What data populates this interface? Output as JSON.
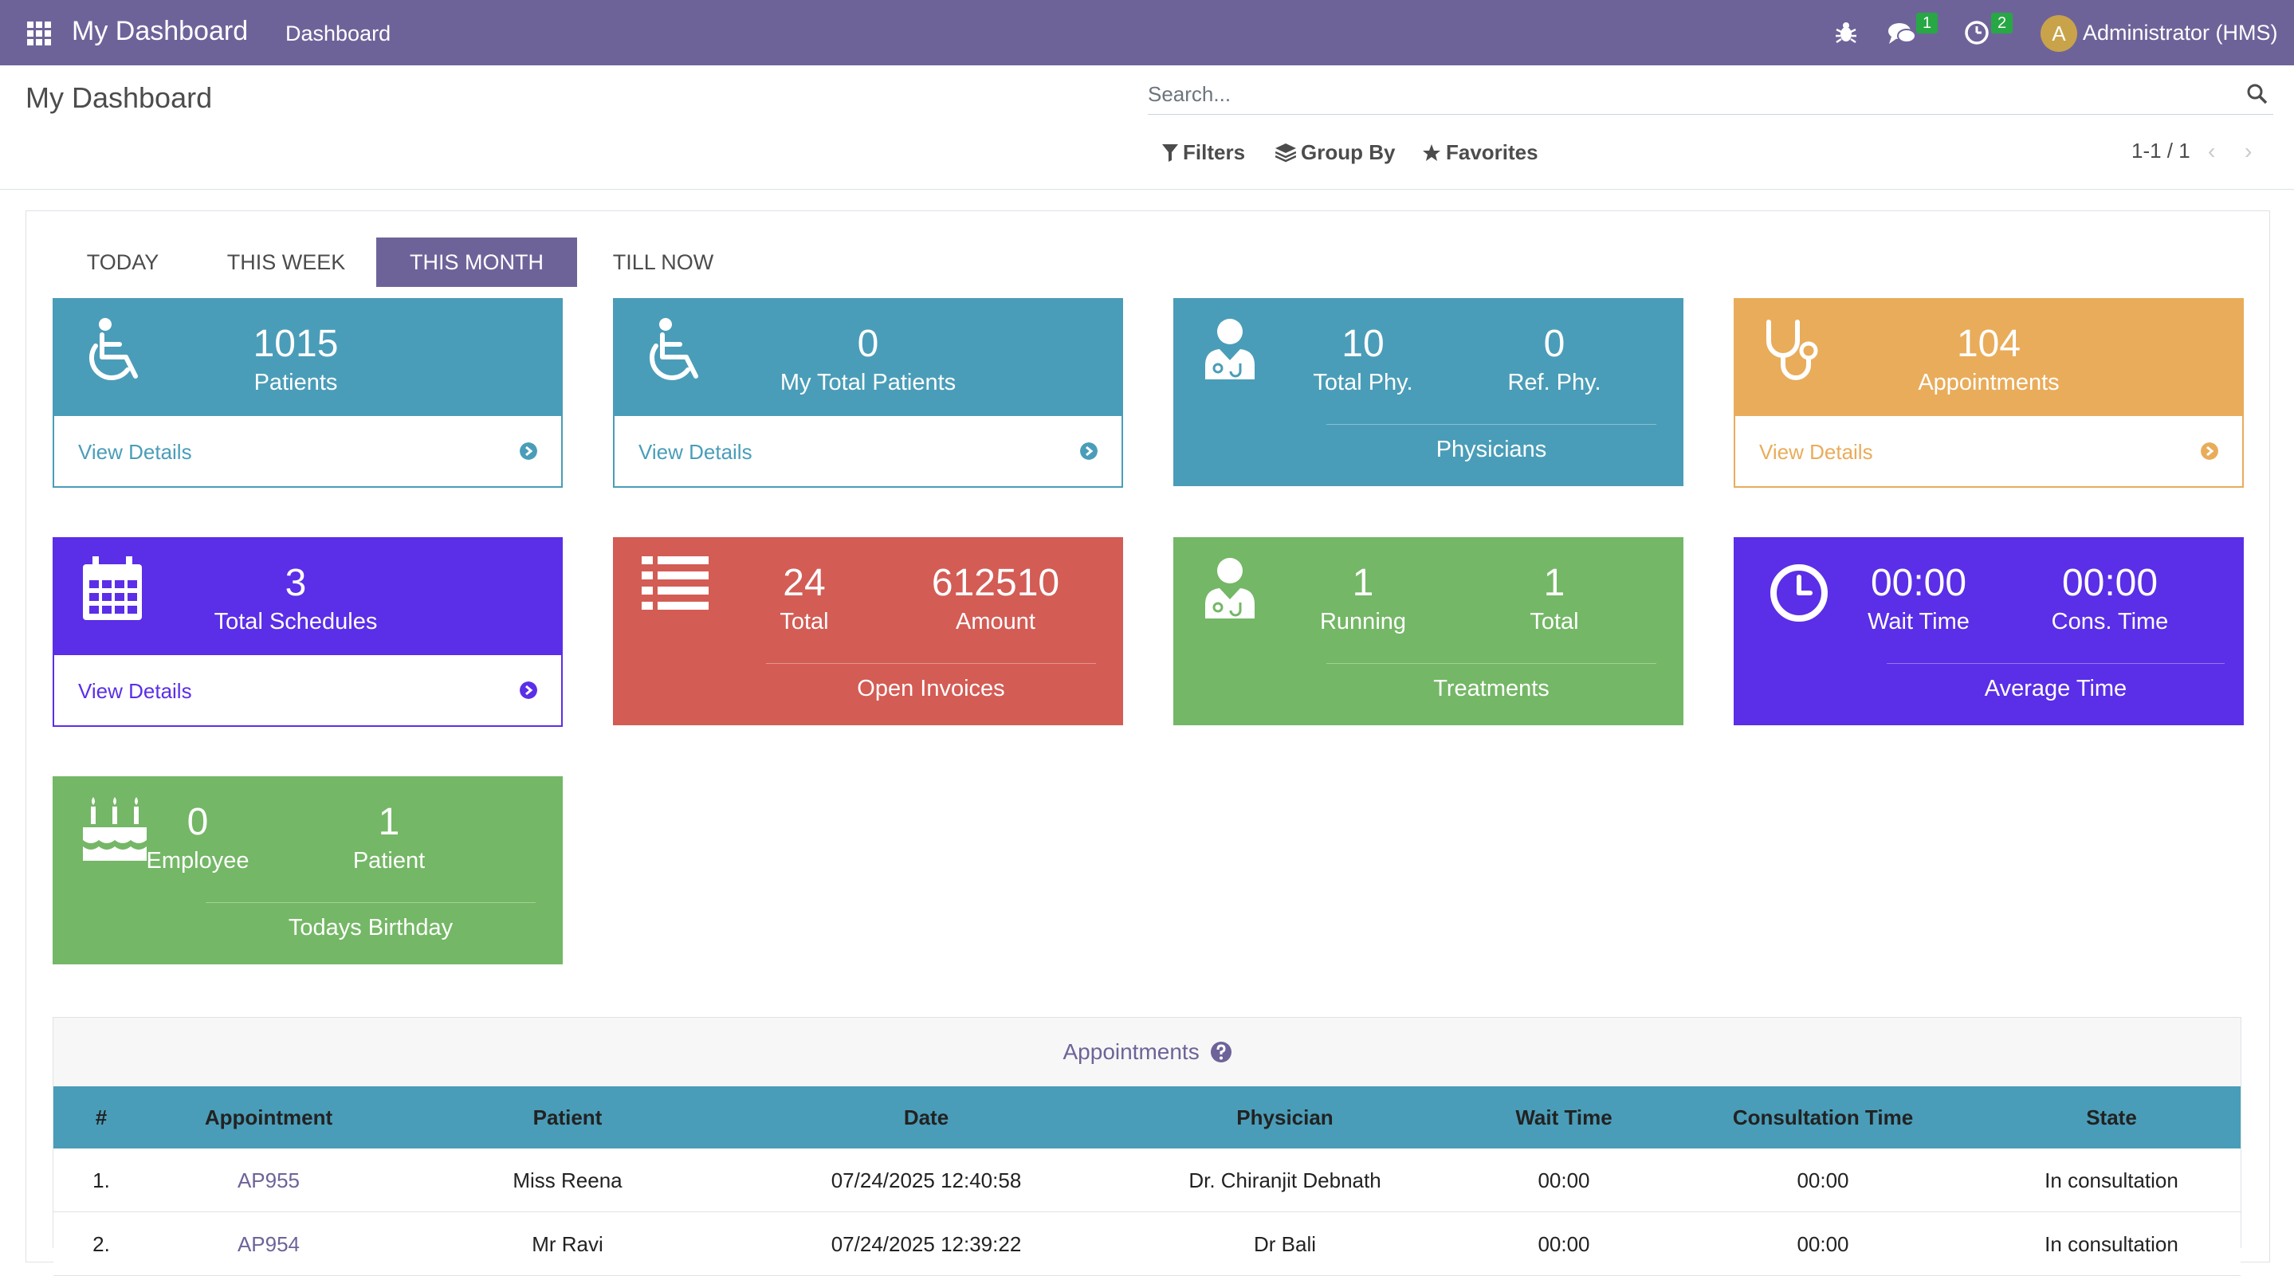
{
  "navbar": {
    "brand": "My Dashboard",
    "menu": "Dashboard",
    "messages_count": "1",
    "activities_count": "2",
    "avatar_letter": "A",
    "user": "Administrator (HMS)"
  },
  "control_panel": {
    "title": "My Dashboard",
    "search_placeholder": "Search...",
    "filters": "Filters",
    "group_by": "Group By",
    "favorites": "Favorites",
    "pager": "1-1 / 1"
  },
  "tabs": [
    {
      "label": "TODAY"
    },
    {
      "label": "THIS WEEK"
    },
    {
      "label": "THIS MONTH",
      "active": true
    },
    {
      "label": "TILL NOW"
    }
  ],
  "cards": {
    "patients": {
      "value": "1015",
      "label": "Patients",
      "link": "View Details",
      "color": "#4a9db8"
    },
    "my_patients": {
      "value": "0",
      "label": "My Total Patients",
      "link": "View Details",
      "color": "#4a9db8"
    },
    "physicians": {
      "total_value": "10",
      "total_label": "Total Phy.",
      "ref_value": "0",
      "ref_label": "Ref. Phy.",
      "footer": "Physicians",
      "color": "#4a9db8"
    },
    "appointments": {
      "value": "104",
      "label": "Appointments",
      "link": "View Details",
      "color": "#e9ac5a"
    },
    "schedules": {
      "value": "3",
      "label": "Total Schedules",
      "link": "View Details",
      "color": "#5b2ee8"
    },
    "invoices": {
      "total_value": "24",
      "total_label": "Total",
      "amount_value": "612510",
      "amount_label": "Amount",
      "footer": "Open Invoices",
      "color": "#d35c55"
    },
    "treatments": {
      "running_value": "1",
      "running_label": "Running",
      "total_value": "1",
      "total_label": "Total",
      "footer": "Treatments",
      "color": "#74b766"
    },
    "avg_time": {
      "wait_value": "00:00",
      "wait_label": "Wait Time",
      "cons_value": "00:00",
      "cons_label": "Cons. Time",
      "footer": "Average Time",
      "color": "#5b2ee8"
    },
    "birthday": {
      "emp_value": "0",
      "emp_label": "Employee",
      "pat_value": "1",
      "pat_label": "Patient",
      "footer": "Todays Birthday",
      "color": "#74b766"
    }
  },
  "appointments_table": {
    "title": "Appointments",
    "columns": [
      "#",
      "Appointment",
      "Patient",
      "Date",
      "Physician",
      "Wait Time",
      "Consultation Time",
      "State"
    ],
    "rows": [
      [
        "1.",
        "AP955",
        "Miss Reena",
        "07/24/2025 12:40:58",
        "Dr. Chiranjit Debnath",
        "00:00",
        "00:00",
        "In consultation"
      ],
      [
        "2.",
        "AP954",
        "Mr Ravi",
        "07/24/2025 12:39:22",
        "Dr Bali",
        "00:00",
        "00:00",
        "In consultation"
      ]
    ]
  }
}
